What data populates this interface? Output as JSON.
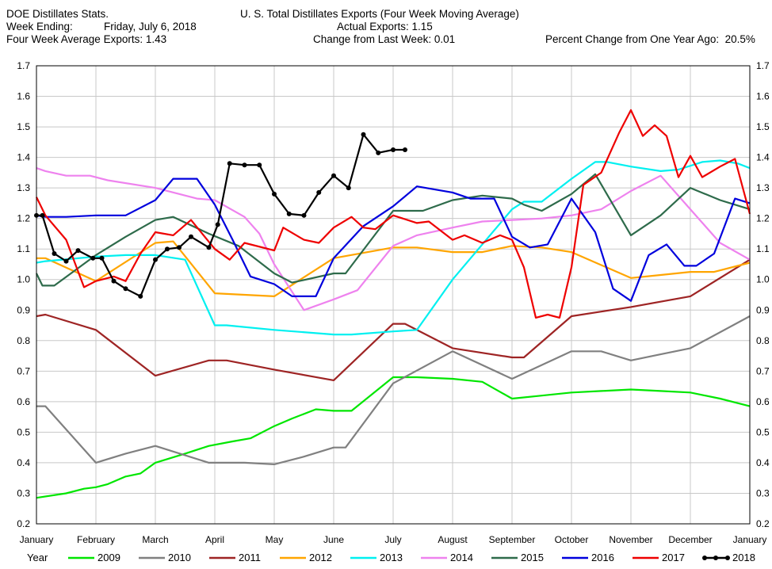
{
  "header": {
    "source": "DOE Distillates Stats.",
    "week_ending_label": "Week Ending:",
    "week_ending_value": "Friday, July 6, 2018",
    "four_week_avg": "Four Week Average Exports: 1.43",
    "title": "U. S. Total Distillates Exports (Four Week Moving Average)",
    "actual": "Actual Exports: 1.15",
    "change": "Change from Last Week: 0.01",
    "pct_change": "Percent Change from One Year Ago:  20.5%"
  },
  "chart_data": {
    "type": "line",
    "title": "U. S. Total Distillates Exports (Four Week Moving Average)",
    "xlabel": "",
    "ylabel": "",
    "ylim": [
      0.2,
      1.7
    ],
    "xlim": [
      0,
      12
    ],
    "grid": true,
    "y_ticks": [
      "0.2",
      "0.3",
      "0.4",
      "0.5",
      "0.6",
      "0.7",
      "0.8",
      "0.9",
      "1.0",
      "1.1",
      "1.2",
      "1.3",
      "1.4",
      "1.5",
      "1.6",
      "1.7"
    ],
    "x_ticks": [
      "January",
      "February",
      "March",
      "April",
      "May",
      "June",
      "July",
      "August",
      "September",
      "October",
      "November",
      "December",
      "January"
    ],
    "legend_title": "Year",
    "legend_position": "bottom",
    "series": [
      {
        "name": "2009",
        "color": "#00e600",
        "marker": false,
        "x": [
          0,
          0.5,
          0.8,
          1,
          1.2,
          1.5,
          1.75,
          2,
          2.5,
          2.9,
          3.3,
          3.6,
          4,
          4.3,
          4.7,
          5,
          5.3,
          6,
          6.4,
          7,
          7.5,
          8,
          8.5,
          9,
          9.5,
          10,
          10.5,
          11,
          11.5,
          12
        ],
        "y": [
          0.285,
          0.3,
          0.315,
          0.32,
          0.33,
          0.355,
          0.365,
          0.4,
          0.43,
          0.455,
          0.47,
          0.48,
          0.52,
          0.545,
          0.575,
          0.57,
          0.57,
          0.68,
          0.68,
          0.675,
          0.665,
          0.61,
          0.62,
          0.63,
          0.635,
          0.64,
          0.635,
          0.63,
          0.61,
          0.585
        ]
      },
      {
        "name": "2010",
        "color": "#808080",
        "marker": false,
        "x": [
          0,
          0.15,
          1,
          1.5,
          2,
          2.9,
          3.5,
          4,
          4.5,
          5,
          5.2,
          6,
          7,
          8,
          9,
          9.5,
          10,
          10.5,
          11,
          12
        ],
        "y": [
          0.585,
          0.585,
          0.4,
          0.43,
          0.455,
          0.4,
          0.4,
          0.395,
          0.42,
          0.45,
          0.45,
          0.66,
          0.765,
          0.675,
          0.765,
          0.765,
          0.735,
          0.755,
          0.775,
          0.88
        ]
      },
      {
        "name": "2011",
        "color": "#9e2424",
        "marker": false,
        "x": [
          0,
          0.15,
          1,
          2,
          2.9,
          3.2,
          4,
          5,
          6,
          6.2,
          7,
          8,
          8.2,
          9,
          9.5,
          10,
          11,
          12
        ],
        "y": [
          0.88,
          0.885,
          0.835,
          0.685,
          0.735,
          0.735,
          0.705,
          0.67,
          0.855,
          0.855,
          0.775,
          0.745,
          0.745,
          0.88,
          0.895,
          0.91,
          0.945,
          1.065
        ]
      },
      {
        "name": "2012",
        "color": "#ffa500",
        "marker": false,
        "x": [
          0,
          0.15,
          1,
          2,
          2.3,
          3,
          4,
          5,
          6,
          6.4,
          7,
          7.5,
          8,
          8.5,
          9,
          10,
          10.5,
          11,
          11.4,
          12
        ],
        "y": [
          1.07,
          1.07,
          0.995,
          1.12,
          1.125,
          0.955,
          0.945,
          1.07,
          1.105,
          1.105,
          1.09,
          1.09,
          1.11,
          1.105,
          1.09,
          1.005,
          1.015,
          1.025,
          1.025,
          1.055
        ]
      },
      {
        "name": "2013",
        "color": "#00f0f0",
        "marker": false,
        "x": [
          0,
          0.15,
          1,
          1.5,
          2,
          2.5,
          3,
          3.2,
          4,
          5,
          5.3,
          6,
          6.4,
          7,
          8,
          8.2,
          8.5,
          9,
          9.4,
          9.6,
          10,
          10.5,
          10.8,
          11.2,
          11.5,
          11.8,
          12
        ],
        "y": [
          1.055,
          1.06,
          1.075,
          1.08,
          1.08,
          1.065,
          0.85,
          0.85,
          0.835,
          0.82,
          0.82,
          0.83,
          0.835,
          1.0,
          1.23,
          1.255,
          1.255,
          1.33,
          1.385,
          1.385,
          1.37,
          1.355,
          1.36,
          1.385,
          1.39,
          1.38,
          1.365
        ]
      },
      {
        "name": "2014",
        "color": "#ee82ee",
        "marker": false,
        "x": [
          0,
          0.15,
          0.5,
          0.9,
          1.2,
          2,
          2.7,
          3,
          3.5,
          3.75,
          4,
          4.5,
          5,
          5.4,
          6,
          6.4,
          7,
          7.5,
          8,
          8.5,
          9,
          9.5,
          10,
          10.5,
          11,
          11.5,
          12
        ],
        "y": [
          1.365,
          1.355,
          1.34,
          1.34,
          1.325,
          1.3,
          1.265,
          1.26,
          1.205,
          1.15,
          1.05,
          0.9,
          0.935,
          0.965,
          1.11,
          1.145,
          1.17,
          1.19,
          1.195,
          1.2,
          1.21,
          1.23,
          1.29,
          1.34,
          1.23,
          1.12,
          1.065
        ]
      },
      {
        "name": "2015",
        "color": "#2e6b4b",
        "marker": false,
        "x": [
          0,
          0.1,
          0.3,
          1,
          1.5,
          2,
          2.3,
          2.9,
          3.4,
          4,
          4.3,
          5,
          5.2,
          6,
          6.5,
          7,
          7.5,
          8,
          8.2,
          8.5,
          9,
          9.4,
          10,
          10.5,
          11,
          11.5,
          12
        ],
        "y": [
          1.02,
          0.98,
          0.98,
          1.08,
          1.14,
          1.195,
          1.205,
          1.15,
          1.11,
          1.02,
          0.99,
          1.02,
          1.02,
          1.225,
          1.225,
          1.26,
          1.275,
          1.265,
          1.245,
          1.225,
          1.28,
          1.345,
          1.145,
          1.21,
          1.3,
          1.26,
          1.23
        ]
      },
      {
        "name": "2016",
        "color": "#0000dd",
        "marker": false,
        "x": [
          0,
          0.15,
          0.5,
          1,
          1.5,
          2,
          2.3,
          2.7,
          3,
          3.3,
          3.6,
          4,
          4.3,
          4.7,
          5,
          5.5,
          6,
          6.4,
          7,
          7.3,
          7.7,
          8,
          8.3,
          8.6,
          9,
          9.4,
          9.7,
          10,
          10.3,
          10.6,
          10.9,
          11.1,
          11.4,
          11.75,
          12
        ],
        "y": [
          1.21,
          1.205,
          1.205,
          1.21,
          1.21,
          1.26,
          1.33,
          1.33,
          1.245,
          1.13,
          1.01,
          0.985,
          0.945,
          0.945,
          1.07,
          1.175,
          1.24,
          1.305,
          1.285,
          1.265,
          1.265,
          1.14,
          1.105,
          1.115,
          1.265,
          1.155,
          0.97,
          0.93,
          1.08,
          1.115,
          1.045,
          1.045,
          1.085,
          1.265,
          1.25
        ]
      },
      {
        "name": "2017",
        "color": "#ee0000",
        "marker": false,
        "x": [
          0,
          0.15,
          0.5,
          0.8,
          1,
          1.3,
          1.5,
          1.75,
          2,
          2.3,
          2.6,
          3,
          3.25,
          3.5,
          4,
          4.15,
          4.5,
          4.75,
          5,
          5.3,
          5.5,
          5.7,
          6,
          6.4,
          6.6,
          7,
          7.2,
          7.5,
          7.8,
          8,
          8.2,
          8.4,
          8.6,
          8.8,
          9,
          9.2,
          9.5,
          9.8,
          10,
          10.2,
          10.4,
          10.6,
          10.8,
          11,
          11.2,
          11.5,
          11.75,
          12
        ],
        "y": [
          1.27,
          1.21,
          1.13,
          0.975,
          0.995,
          1.01,
          0.995,
          1.085,
          1.155,
          1.145,
          1.195,
          1.1,
          1.065,
          1.12,
          1.095,
          1.17,
          1.13,
          1.12,
          1.17,
          1.205,
          1.17,
          1.165,
          1.21,
          1.185,
          1.19,
          1.13,
          1.145,
          1.12,
          1.145,
          1.13,
          1.04,
          0.875,
          0.885,
          0.875,
          1.04,
          1.31,
          1.35,
          1.48,
          1.555,
          1.47,
          1.505,
          1.47,
          1.335,
          1.405,
          1.335,
          1.37,
          1.395,
          1.215
        ]
      },
      {
        "name": "2018",
        "color": "#000000",
        "marker": true,
        "x": [
          0,
          0.1,
          0.3,
          0.5,
          0.7,
          0.95,
          1.1,
          1.3,
          1.5,
          1.75,
          2,
          2.2,
          2.4,
          2.6,
          2.9,
          3.05,
          3.25,
          3.5,
          3.75,
          4,
          4.25,
          4.5,
          4.75,
          5,
          5.25,
          5.5,
          5.75,
          6,
          6.2
        ],
        "y": [
          1.21,
          1.21,
          1.085,
          1.06,
          1.095,
          1.07,
          1.07,
          0.995,
          0.97,
          0.945,
          1.065,
          1.1,
          1.105,
          1.14,
          1.105,
          1.18,
          1.38,
          1.375,
          1.375,
          1.28,
          1.215,
          1.21,
          1.285,
          1.34,
          1.3,
          1.475,
          1.415,
          1.425,
          1.425
        ]
      }
    ]
  }
}
